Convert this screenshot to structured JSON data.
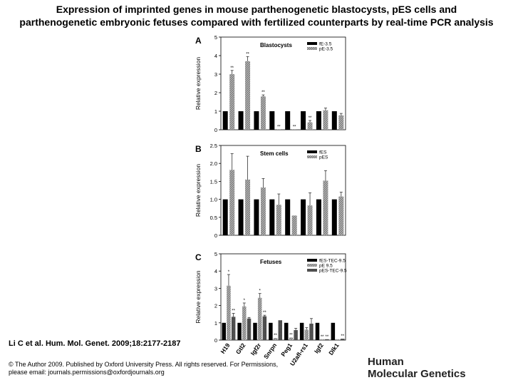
{
  "header": {
    "title_line1": "Expression of imprinted genes in mouse parthenogenetic blastocysts, pES cells and",
    "title_line2": "parthenogenetic embryonic fetuses compared with fertilized counterparts by real-time PCR analysis"
  },
  "footer": {
    "citation": "Li C et al. Hum. Mol. Genet. 2009;18:2177-2187",
    "copyright": "© The Author 2009. Published by Oxford University Press. All rights reserved. For Permissions, please email: journals.permissions@oxfordjournals.org",
    "journal_line1": "Human",
    "journal_line2": "Molecular Genetics"
  },
  "chart_data": [
    {
      "type": "bar",
      "panel": "A",
      "title": "Blastocysts",
      "ylabel": "Relative expression",
      "ylim": [
        0,
        5
      ],
      "yticks": [
        "0",
        "1",
        "2",
        "3",
        "4",
        "5"
      ],
      "legend_position": "top-right",
      "genes": 8,
      "series": [
        {
          "name": "fE-3.5",
          "color": "#000000",
          "values": [
            1,
            1,
            1,
            1,
            1,
            1,
            1,
            1
          ],
          "errors": [
            0,
            0,
            0,
            0,
            0,
            0,
            0,
            0
          ],
          "labels": [
            "",
            "",
            "",
            "",
            "",
            "",
            "",
            ""
          ]
        },
        {
          "name": "pE-3.5",
          "color": "#a6a6a6",
          "values": [
            3.0,
            3.7,
            1.8,
            0.02,
            0.02,
            0.4,
            1.05,
            0.78
          ],
          "errors": [
            0.2,
            0.25,
            0.08,
            0,
            0,
            0.1,
            0.12,
            0.1
          ],
          "labels": [
            "**",
            "**",
            "**",
            "**",
            "**",
            "**",
            "",
            ""
          ]
        }
      ]
    },
    {
      "type": "bar",
      "panel": "B",
      "title": "Stem cells",
      "ylabel": "Relative expression",
      "ylim": [
        0,
        2.5
      ],
      "yticks": [
        "0",
        "0.5",
        "1.0",
        "1.5",
        "2.0",
        "2.5"
      ],
      "legend_position": "top-right",
      "genes": 8,
      "series": [
        {
          "name": "fES",
          "color": "#000000",
          "values": [
            1,
            1,
            1,
            1,
            1,
            1,
            1,
            1
          ],
          "errors": [
            0,
            0,
            0,
            0,
            0,
            0,
            0,
            0
          ],
          "labels": [
            "",
            "",
            "",
            "",
            "",
            "",
            "",
            ""
          ]
        },
        {
          "name": "pES",
          "color": "#a6a6a6",
          "values": [
            1.82,
            1.55,
            1.33,
            0.85,
            0.55,
            0.83,
            1.52,
            1.08
          ],
          "errors": [
            0.45,
            0.65,
            0.25,
            0.3,
            0,
            0.35,
            0.28,
            0.12
          ],
          "labels": [
            "",
            "",
            "",
            "",
            "",
            "",
            "",
            ""
          ]
        }
      ]
    },
    {
      "type": "bar",
      "panel": "C",
      "title": "Fetuses",
      "ylabel": "Relative expression",
      "ylim": [
        0,
        5
      ],
      "yticks": [
        "0",
        "1",
        "2",
        "3",
        "4",
        "5"
      ],
      "legend_position": "top-right",
      "categories": [
        "H19",
        "Gtl2",
        "Igf2r",
        "Snrpn",
        "Peg1",
        "U2afl-rs1",
        "Igf2",
        "Dlk1"
      ],
      "series": [
        {
          "name": "fES-TEC-9.5",
          "color": "#000000",
          "values": [
            1,
            1,
            1,
            1,
            1,
            1,
            1,
            1
          ],
          "errors": [
            0,
            0,
            0,
            0,
            0,
            0,
            0,
            0
          ],
          "labels": [
            "",
            "",
            "",
            "",
            "",
            "",
            "",
            ""
          ]
        },
        {
          "name": "pE 9.5",
          "color": "#a6a6a6",
          "values": [
            3.15,
            1.95,
            2.45,
            0.12,
            0.15,
            0.6,
            0.05,
            0.05
          ],
          "errors": [
            0.65,
            0.2,
            0.25,
            0,
            0,
            0.12,
            0,
            0
          ],
          "labels": [
            "*",
            "*",
            "*",
            "**",
            "**",
            "",
            "**",
            ""
          ]
        },
        {
          "name": "pES-TEC-9.5",
          "color": "#4d4d4d",
          "values": [
            1.35,
            1.25,
            1.38,
            1.15,
            0.58,
            0.95,
            0.05,
            0.08
          ],
          "errors": [
            0.2,
            0.06,
            0.06,
            0,
            0.1,
            0.3,
            0,
            0
          ],
          "labels": [
            "**",
            "",
            "**",
            "",
            "",
            "",
            "**",
            "**"
          ]
        }
      ]
    }
  ]
}
